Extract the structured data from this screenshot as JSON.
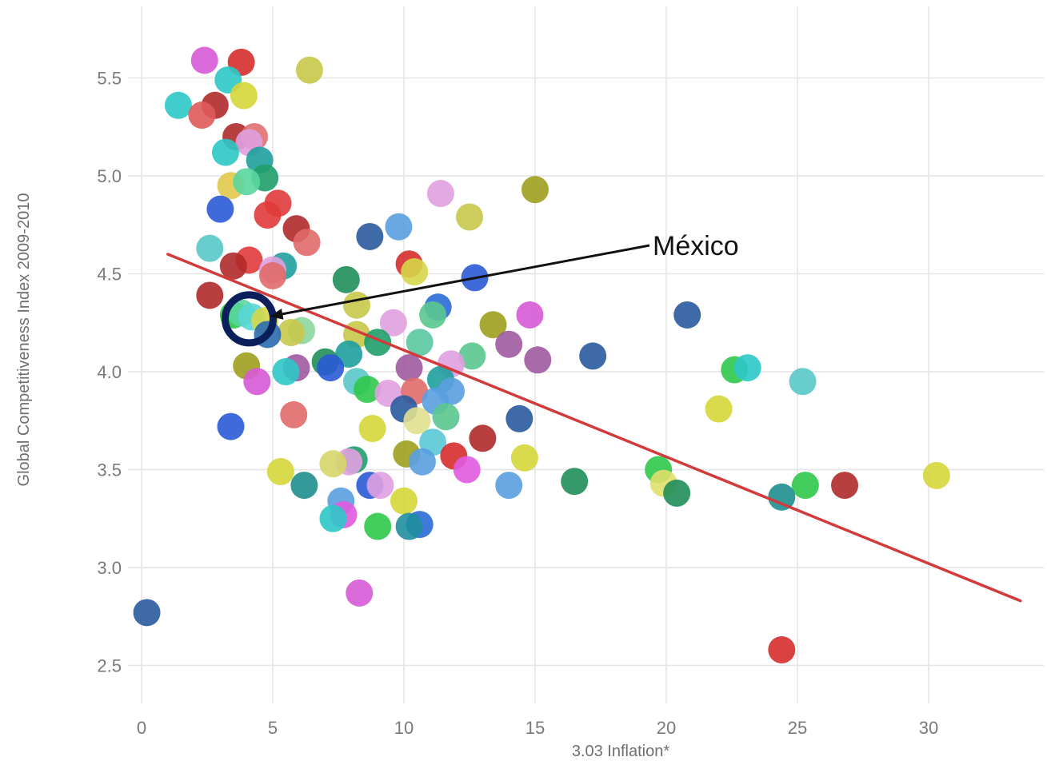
{
  "chart_data": {
    "type": "scatter",
    "title": "",
    "xlabel": "3.03 Inflation*",
    "ylabel": "Global Competitiveness Index 2009-2010",
    "xlim": [
      0,
      34
    ],
    "ylim": [
      2.35,
      5.75
    ],
    "x_ticks": [
      "0",
      "5",
      "10",
      "15",
      "20",
      "25",
      "30"
    ],
    "y_ticks": [
      "2.5",
      "3.0",
      "3.5",
      "4.0",
      "4.5",
      "5.0",
      "5.5"
    ],
    "grid": true,
    "legend": "none",
    "trendline": {
      "color": "#d23b3b",
      "x": [
        1.0,
        33.5
      ],
      "y": [
        4.6,
        2.83
      ]
    },
    "annotation": {
      "label": "México",
      "point": {
        "x": 4.1,
        "y": 4.27
      }
    },
    "points": [
      {
        "x": 2.4,
        "y": 5.59,
        "c": "#d65ad6"
      },
      {
        "x": 3.8,
        "y": 5.58,
        "c": "#d62c2c"
      },
      {
        "x": 6.4,
        "y": 5.54,
        "c": "#c8c84a"
      },
      {
        "x": 3.3,
        "y": 5.49,
        "c": "#2ec8c8"
      },
      {
        "x": 3.9,
        "y": 5.41,
        "c": "#d6d63a"
      },
      {
        "x": 1.4,
        "y": 5.36,
        "c": "#2ec8c8"
      },
      {
        "x": 2.8,
        "y": 5.36,
        "c": "#b02a2a"
      },
      {
        "x": 2.3,
        "y": 5.31,
        "c": "#e05a5a"
      },
      {
        "x": 3.6,
        "y": 5.2,
        "c": "#b02a2a"
      },
      {
        "x": 4.3,
        "y": 5.2,
        "c": "#e07070"
      },
      {
        "x": 4.1,
        "y": 5.17,
        "c": "#e0a0e0"
      },
      {
        "x": 3.2,
        "y": 5.12,
        "c": "#2ec8c8"
      },
      {
        "x": 4.5,
        "y": 5.08,
        "c": "#1f9e9e"
      },
      {
        "x": 4.7,
        "y": 4.99,
        "c": "#1f9e6a"
      },
      {
        "x": 3.4,
        "y": 4.95,
        "c": "#e0c84a"
      },
      {
        "x": 4.0,
        "y": 4.97,
        "c": "#5ad69e"
      },
      {
        "x": 15.0,
        "y": 4.93,
        "c": "#9e9e1f"
      },
      {
        "x": 11.4,
        "y": 4.91,
        "c": "#e0a0e0"
      },
      {
        "x": 3.0,
        "y": 4.83,
        "c": "#2a5ad6"
      },
      {
        "x": 5.2,
        "y": 4.86,
        "c": "#e03a3a"
      },
      {
        "x": 4.8,
        "y": 4.8,
        "c": "#e03a3a"
      },
      {
        "x": 12.5,
        "y": 4.79,
        "c": "#c8c84a"
      },
      {
        "x": 5.9,
        "y": 4.73,
        "c": "#b02a2a"
      },
      {
        "x": 9.8,
        "y": 4.74,
        "c": "#5a9ee0"
      },
      {
        "x": 8.7,
        "y": 4.69,
        "c": "#2a5a9e"
      },
      {
        "x": 6.3,
        "y": 4.66,
        "c": "#e06a6a"
      },
      {
        "x": 2.6,
        "y": 4.63,
        "c": "#5ac8c8"
      },
      {
        "x": 4.1,
        "y": 4.57,
        "c": "#e03a3a"
      },
      {
        "x": 3.5,
        "y": 4.54,
        "c": "#b02a2a"
      },
      {
        "x": 5.4,
        "y": 4.54,
        "c": "#1f9e9e"
      },
      {
        "x": 5.0,
        "y": 4.52,
        "c": "#e0a0e0"
      },
      {
        "x": 10.2,
        "y": 4.55,
        "c": "#d62c2c"
      },
      {
        "x": 10.4,
        "y": 4.51,
        "c": "#d6d64a"
      },
      {
        "x": 5.0,
        "y": 4.49,
        "c": "#e06a6a"
      },
      {
        "x": 12.7,
        "y": 4.48,
        "c": "#2a5ad6"
      },
      {
        "x": 7.8,
        "y": 4.47,
        "c": "#1f8e5a"
      },
      {
        "x": 2.6,
        "y": 4.39,
        "c": "#b02a2a"
      },
      {
        "x": 8.2,
        "y": 4.34,
        "c": "#c8c84a"
      },
      {
        "x": 11.3,
        "y": 4.33,
        "c": "#2a6ad6"
      },
      {
        "x": 3.5,
        "y": 4.29,
        "c": "#2ec84a"
      },
      {
        "x": 3.8,
        "y": 4.3,
        "c": "#5ad69e"
      },
      {
        "x": 4.2,
        "y": 4.28,
        "c": "#5ad6d6"
      },
      {
        "x": 4.7,
        "y": 4.26,
        "c": "#d6d64a"
      },
      {
        "x": 11.1,
        "y": 4.29,
        "c": "#5ac88e"
      },
      {
        "x": 14.8,
        "y": 4.29,
        "c": "#d65ad6"
      },
      {
        "x": 20.8,
        "y": 4.29,
        "c": "#2a5a9e"
      },
      {
        "x": 9.6,
        "y": 4.25,
        "c": "#e0a0e0"
      },
      {
        "x": 13.4,
        "y": 4.24,
        "c": "#9e9e1f"
      },
      {
        "x": 6.1,
        "y": 4.21,
        "c": "#8ed6a0"
      },
      {
        "x": 5.7,
        "y": 4.2,
        "c": "#c8c84a"
      },
      {
        "x": 4.8,
        "y": 4.19,
        "c": "#2a6ab0"
      },
      {
        "x": 8.2,
        "y": 4.19,
        "c": "#c8c84a"
      },
      {
        "x": 9.0,
        "y": 4.15,
        "c": "#1f9e6a"
      },
      {
        "x": 10.6,
        "y": 4.15,
        "c": "#5ac8a0"
      },
      {
        "x": 14.0,
        "y": 4.14,
        "c": "#9e5aa0"
      },
      {
        "x": 7.9,
        "y": 4.09,
        "c": "#1f9e9e"
      },
      {
        "x": 12.6,
        "y": 4.08,
        "c": "#5ac88e"
      },
      {
        "x": 17.2,
        "y": 4.08,
        "c": "#2a5a9e"
      },
      {
        "x": 15.1,
        "y": 4.06,
        "c": "#9e5aa0"
      },
      {
        "x": 7.0,
        "y": 4.05,
        "c": "#1f8e5a"
      },
      {
        "x": 11.8,
        "y": 4.04,
        "c": "#e0a0e0"
      },
      {
        "x": 4.0,
        "y": 4.03,
        "c": "#9e9e1f"
      },
      {
        "x": 5.9,
        "y": 4.02,
        "c": "#9e5aa0"
      },
      {
        "x": 5.5,
        "y": 4.0,
        "c": "#2ec8c8"
      },
      {
        "x": 7.2,
        "y": 4.02,
        "c": "#2a5ad6"
      },
      {
        "x": 10.2,
        "y": 4.02,
        "c": "#9e5aa0"
      },
      {
        "x": 22.6,
        "y": 4.01,
        "c": "#2ec84a"
      },
      {
        "x": 23.1,
        "y": 4.02,
        "c": "#2ec8c8"
      },
      {
        "x": 4.4,
        "y": 3.95,
        "c": "#d65ad6"
      },
      {
        "x": 8.2,
        "y": 3.95,
        "c": "#5ac8c8"
      },
      {
        "x": 11.4,
        "y": 3.96,
        "c": "#1f9e9e"
      },
      {
        "x": 25.2,
        "y": 3.95,
        "c": "#5ac8c8"
      },
      {
        "x": 8.6,
        "y": 3.91,
        "c": "#2ec84a"
      },
      {
        "x": 9.4,
        "y": 3.89,
        "c": "#e0a0e0"
      },
      {
        "x": 10.4,
        "y": 3.9,
        "c": "#e06a6a"
      },
      {
        "x": 11.8,
        "y": 3.9,
        "c": "#5a9ee0"
      },
      {
        "x": 11.2,
        "y": 3.85,
        "c": "#5a9ee0"
      },
      {
        "x": 10.0,
        "y": 3.81,
        "c": "#2a5a9e"
      },
      {
        "x": 22.0,
        "y": 3.81,
        "c": "#d6d63a"
      },
      {
        "x": 5.8,
        "y": 3.78,
        "c": "#e06a6a"
      },
      {
        "x": 11.6,
        "y": 3.77,
        "c": "#5ac88e"
      },
      {
        "x": 14.4,
        "y": 3.76,
        "c": "#2a5a9e"
      },
      {
        "x": 10.5,
        "y": 3.75,
        "c": "#e0e08e"
      },
      {
        "x": 3.4,
        "y": 3.72,
        "c": "#2a5ad6"
      },
      {
        "x": 8.8,
        "y": 3.71,
        "c": "#d6d63a"
      },
      {
        "x": 13.0,
        "y": 3.66,
        "c": "#b02a2a"
      },
      {
        "x": 11.1,
        "y": 3.64,
        "c": "#5ac8d6"
      },
      {
        "x": 10.1,
        "y": 3.58,
        "c": "#9e9e1f"
      },
      {
        "x": 11.9,
        "y": 3.57,
        "c": "#d62c2c"
      },
      {
        "x": 14.6,
        "y": 3.56,
        "c": "#d6d63a"
      },
      {
        "x": 8.1,
        "y": 3.55,
        "c": "#1f9e6a"
      },
      {
        "x": 7.9,
        "y": 3.54,
        "c": "#e0a0e0"
      },
      {
        "x": 7.3,
        "y": 3.53,
        "c": "#d6d66a"
      },
      {
        "x": 10.7,
        "y": 3.54,
        "c": "#5a9ee0"
      },
      {
        "x": 12.4,
        "y": 3.5,
        "c": "#e05ae0"
      },
      {
        "x": 5.3,
        "y": 3.49,
        "c": "#d6d63a"
      },
      {
        "x": 19.7,
        "y": 3.5,
        "c": "#2ec84a"
      },
      {
        "x": 30.3,
        "y": 3.47,
        "c": "#d6d63a"
      },
      {
        "x": 16.5,
        "y": 3.44,
        "c": "#1f8e5a"
      },
      {
        "x": 19.9,
        "y": 3.43,
        "c": "#e0e06a"
      },
      {
        "x": 25.3,
        "y": 3.42,
        "c": "#2ec84a"
      },
      {
        "x": 26.8,
        "y": 3.42,
        "c": "#b02a2a"
      },
      {
        "x": 6.2,
        "y": 3.42,
        "c": "#1f8e8e"
      },
      {
        "x": 8.7,
        "y": 3.42,
        "c": "#2a5ad6"
      },
      {
        "x": 9.1,
        "y": 3.42,
        "c": "#e0a0e0"
      },
      {
        "x": 14.0,
        "y": 3.42,
        "c": "#5a9ee0"
      },
      {
        "x": 20.4,
        "y": 3.38,
        "c": "#1f8e5a"
      },
      {
        "x": 24.4,
        "y": 3.36,
        "c": "#1f8e8e"
      },
      {
        "x": 7.6,
        "y": 3.34,
        "c": "#5a9ee0"
      },
      {
        "x": 10.0,
        "y": 3.34,
        "c": "#d6d63a"
      },
      {
        "x": 7.7,
        "y": 3.27,
        "c": "#e05ae0"
      },
      {
        "x": 7.3,
        "y": 3.25,
        "c": "#2ec8c8"
      },
      {
        "x": 9.0,
        "y": 3.21,
        "c": "#2ec84a"
      },
      {
        "x": 10.6,
        "y": 3.22,
        "c": "#2a6ad6"
      },
      {
        "x": 10.2,
        "y": 3.21,
        "c": "#1f8e9e"
      },
      {
        "x": 8.3,
        "y": 2.87,
        "c": "#d65ad6"
      },
      {
        "x": 0.2,
        "y": 2.77,
        "c": "#2a5a9e"
      },
      {
        "x": 24.4,
        "y": 2.58,
        "c": "#d62c2c"
      }
    ]
  }
}
